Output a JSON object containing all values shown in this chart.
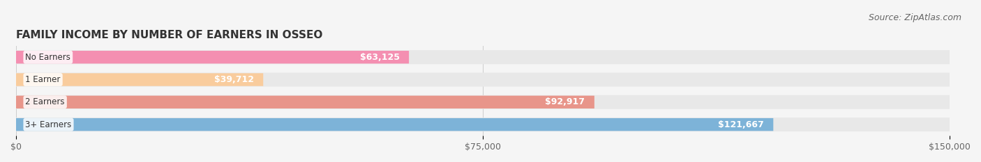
{
  "title": "FAMILY INCOME BY NUMBER OF EARNERS IN OSSEO",
  "source": "Source: ZipAtlas.com",
  "categories": [
    "No Earners",
    "1 Earner",
    "2 Earners",
    "3+ Earners"
  ],
  "values": [
    63125,
    39712,
    92917,
    121667
  ],
  "labels": [
    "$63,125",
    "$39,712",
    "$92,917",
    "$121,667"
  ],
  "bar_colors": [
    "#f48fb1",
    "#f9cc9d",
    "#e8958a",
    "#7db3d8"
  ],
  "label_bg_colors": [
    "#f48fb1",
    "#f9cc9d",
    "#e8958a",
    "#7db3d8"
  ],
  "bar_bg_color": "#f0f0f0",
  "xlim": [
    0,
    150000
  ],
  "xticks": [
    0,
    75000,
    150000
  ],
  "xtick_labels": [
    "$0",
    "$75,000",
    "$150,000"
  ],
  "title_fontsize": 11,
  "source_fontsize": 9,
  "background_color": "#f5f5f5",
  "fig_width": 14.06,
  "fig_height": 2.33
}
